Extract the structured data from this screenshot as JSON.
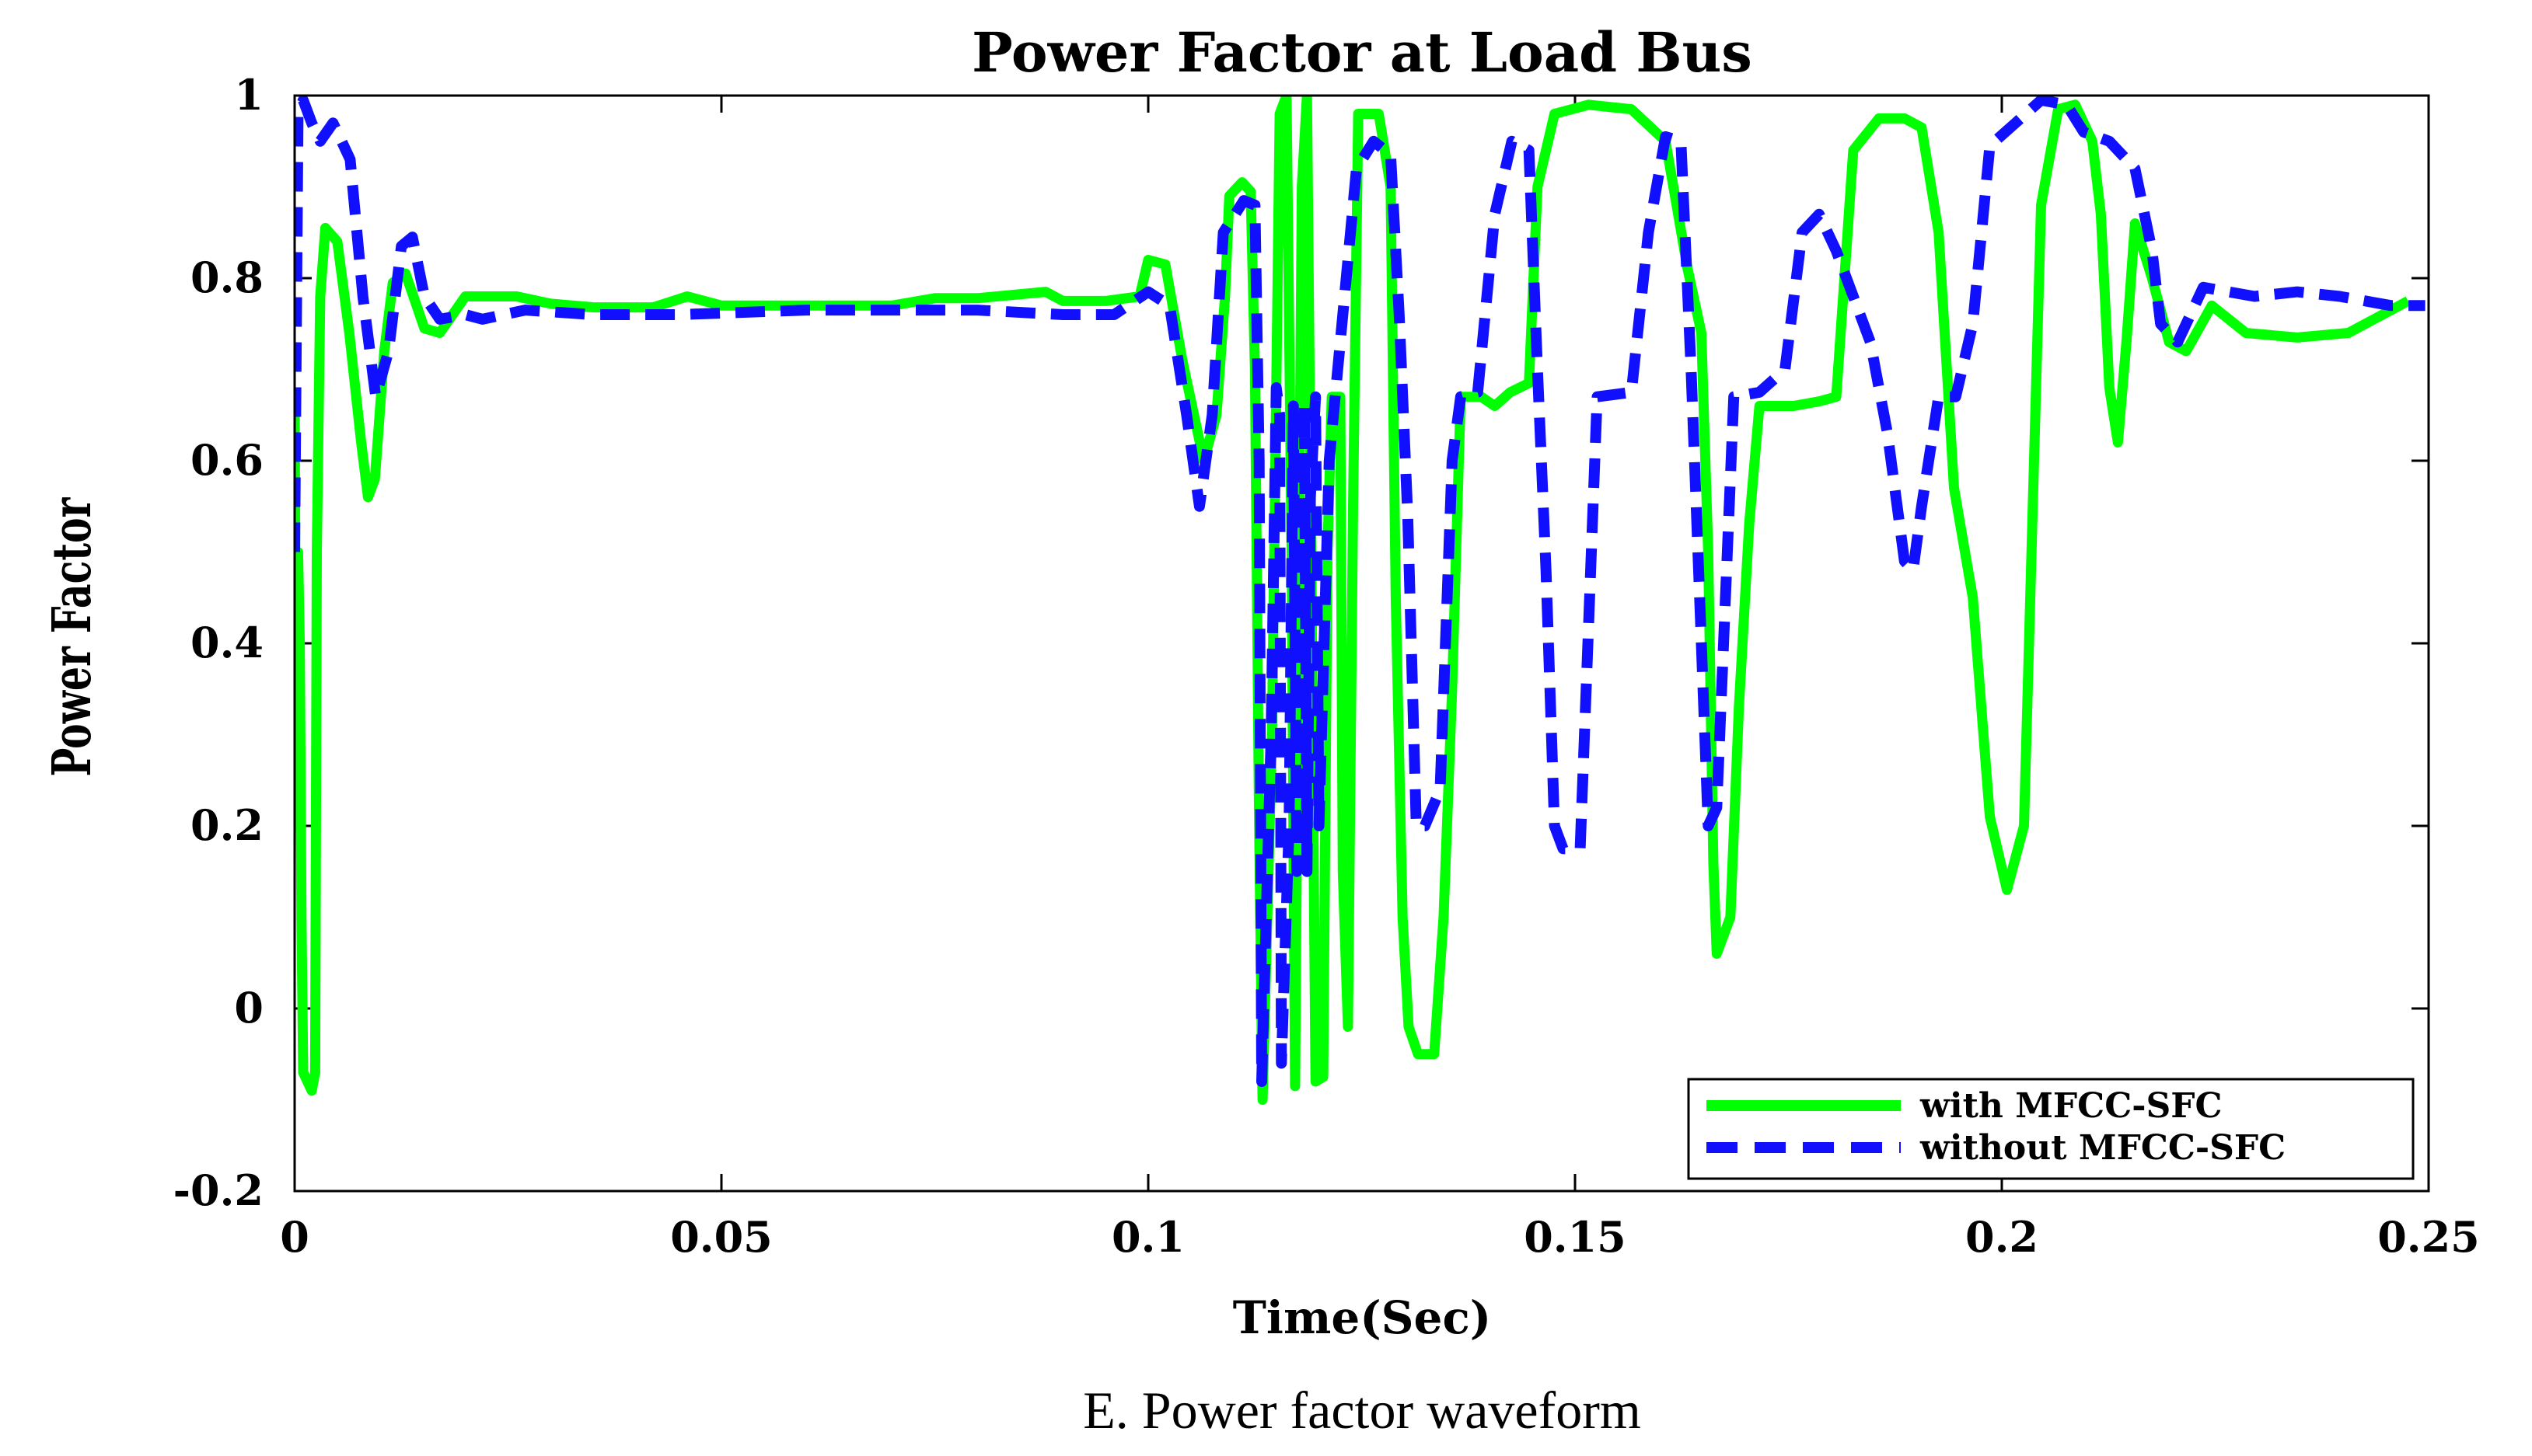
{
  "chart_data": {
    "type": "line",
    "title": "Power Factor at Load Bus",
    "xlabel": "Time(Sec)",
    "ylabel": "Power Factor",
    "xlim": [
      0,
      0.25
    ],
    "ylim": [
      -0.2,
      1
    ],
    "xticks": [
      0,
      0.05,
      0.1,
      0.15,
      0.2,
      0.25
    ],
    "xtick_labels": [
      "0",
      "0.05",
      "0.1",
      "0.15",
      "0.2",
      "0.25"
    ],
    "yticks": [
      -0.2,
      0,
      0.2,
      0.4,
      0.6,
      0.8,
      1
    ],
    "ytick_labels": [
      "-0.2",
      "0",
      "0.2",
      "0.4",
      "0.6",
      "0.8",
      "1"
    ],
    "legend_position": "bottom-right",
    "grid": false,
    "series": [
      {
        "name": "with MFCC-SFC",
        "color": "#00ff00",
        "style": "solid",
        "points": [
          [
            0,
            0.66
          ],
          [
            0.0002,
            0.2
          ],
          [
            0.0004,
            0.5
          ],
          [
            0.0006,
            0.4
          ],
          [
            0.0008,
            0.1
          ],
          [
            0.001,
            -0.07
          ],
          [
            0.002,
            -0.09
          ],
          [
            0.0024,
            -0.07
          ],
          [
            0.0026,
            0.5
          ],
          [
            0.003,
            0.78
          ],
          [
            0.0036,
            0.855
          ],
          [
            0.005,
            0.84
          ],
          [
            0.0064,
            0.74
          ],
          [
            0.0078,
            0.62
          ],
          [
            0.0086,
            0.56
          ],
          [
            0.0094,
            0.58
          ],
          [
            0.0105,
            0.72
          ],
          [
            0.0115,
            0.795
          ],
          [
            0.013,
            0.805
          ],
          [
            0.0152,
            0.745
          ],
          [
            0.017,
            0.74
          ],
          [
            0.02,
            0.78
          ],
          [
            0.026,
            0.78
          ],
          [
            0.03,
            0.772
          ],
          [
            0.035,
            0.768
          ],
          [
            0.042,
            0.768
          ],
          [
            0.046,
            0.78
          ],
          [
            0.05,
            0.77
          ],
          [
            0.06,
            0.77
          ],
          [
            0.07,
            0.77
          ],
          [
            0.075,
            0.778
          ],
          [
            0.08,
            0.778
          ],
          [
            0.088,
            0.785
          ],
          [
            0.09,
            0.775
          ],
          [
            0.095,
            0.775
          ],
          [
            0.099,
            0.78
          ],
          [
            0.1,
            0.82
          ],
          [
            0.102,
            0.815
          ],
          [
            0.104,
            0.71
          ],
          [
            0.1065,
            0.6
          ],
          [
            0.108,
            0.65
          ],
          [
            0.109,
            0.78
          ],
          [
            0.1095,
            0.89
          ],
          [
            0.111,
            0.905
          ],
          [
            0.112,
            0.895
          ],
          [
            0.1125,
            0.7
          ],
          [
            0.113,
            0.2
          ],
          [
            0.1134,
            -0.1
          ],
          [
            0.1145,
            0.3
          ],
          [
            0.1154,
            0.98
          ],
          [
            0.1162,
            1.0
          ],
          [
            0.1168,
            0.5
          ],
          [
            0.1172,
            -0.085
          ],
          [
            0.118,
            0.9
          ],
          [
            0.1186,
            1.0
          ],
          [
            0.119,
            0.6
          ],
          [
            0.1196,
            -0.08
          ],
          [
            0.1205,
            -0.075
          ],
          [
            0.121,
            0.5
          ],
          [
            0.1215,
            0.67
          ],
          [
            0.1225,
            0.67
          ],
          [
            0.1228,
            0.15
          ],
          [
            0.1234,
            -0.02
          ],
          [
            0.124,
            0.55
          ],
          [
            0.1246,
            0.98
          ],
          [
            0.127,
            0.98
          ],
          [
            0.1284,
            0.9
          ],
          [
            0.129,
            0.45
          ],
          [
            0.1298,
            0.1
          ],
          [
            0.1305,
            -0.02
          ],
          [
            0.1316,
            -0.05
          ],
          [
            0.1335,
            -0.05
          ],
          [
            0.1346,
            0.1
          ],
          [
            0.1356,
            0.35
          ],
          [
            0.1366,
            0.67
          ],
          [
            0.139,
            0.67
          ],
          [
            0.1406,
            0.66
          ],
          [
            0.1424,
            0.675
          ],
          [
            0.1446,
            0.685
          ],
          [
            0.1456,
            0.9
          ],
          [
            0.1476,
            0.98
          ],
          [
            0.1516,
            0.99
          ],
          [
            0.1566,
            0.985
          ],
          [
            0.1606,
            0.95
          ],
          [
            0.1632,
            0.81
          ],
          [
            0.1648,
            0.74
          ],
          [
            0.1656,
            0.5
          ],
          [
            0.1662,
            0.16
          ],
          [
            0.1666,
            0.06
          ],
          [
            0.1682,
            0.1
          ],
          [
            0.1692,
            0.33
          ],
          [
            0.1704,
            0.53
          ],
          [
            0.1716,
            0.66
          ],
          [
            0.1756,
            0.66
          ],
          [
            0.1786,
            0.665
          ],
          [
            0.1806,
            0.67
          ],
          [
            0.1826,
            0.94
          ],
          [
            0.1856,
            0.975
          ],
          [
            0.1886,
            0.975
          ],
          [
            0.1906,
            0.965
          ],
          [
            0.1926,
            0.85
          ],
          [
            0.1944,
            0.57
          ],
          [
            0.1966,
            0.45
          ],
          [
            0.1986,
            0.21
          ],
          [
            0.2006,
            0.13
          ],
          [
            0.2026,
            0.2
          ],
          [
            0.2046,
            0.88
          ],
          [
            0.2066,
            0.985
          ],
          [
            0.2086,
            0.99
          ],
          [
            0.2106,
            0.95
          ],
          [
            0.2116,
            0.87
          ],
          [
            0.2126,
            0.68
          ],
          [
            0.2136,
            0.62
          ],
          [
            0.2146,
            0.73
          ],
          [
            0.2156,
            0.86
          ],
          [
            0.2176,
            0.8
          ],
          [
            0.2196,
            0.73
          ],
          [
            0.2216,
            0.72
          ],
          [
            0.2246,
            0.77
          ],
          [
            0.2286,
            0.74
          ],
          [
            0.2346,
            0.735
          ],
          [
            0.2406,
            0.74
          ],
          [
            0.2446,
            0.76
          ],
          [
            0.2476,
            0.775
          ]
        ]
      },
      {
        "name": "without MFCC-SFC",
        "color": "#1010ff",
        "style": "dashed",
        "points": [
          [
            0,
            0.5
          ],
          [
            0.0004,
            0.98
          ],
          [
            0.001,
            0.995
          ],
          [
            0.002,
            0.97
          ],
          [
            0.003,
            0.95
          ],
          [
            0.0045,
            0.97
          ],
          [
            0.0065,
            0.93
          ],
          [
            0.008,
            0.78
          ],
          [
            0.0095,
            0.67
          ],
          [
            0.011,
            0.72
          ],
          [
            0.0125,
            0.835
          ],
          [
            0.0138,
            0.845
          ],
          [
            0.0152,
            0.78
          ],
          [
            0.017,
            0.755
          ],
          [
            0.02,
            0.76
          ],
          [
            0.022,
            0.755
          ],
          [
            0.027,
            0.765
          ],
          [
            0.035,
            0.76
          ],
          [
            0.045,
            0.76
          ],
          [
            0.06,
            0.765
          ],
          [
            0.07,
            0.765
          ],
          [
            0.08,
            0.765
          ],
          [
            0.09,
            0.76
          ],
          [
            0.096,
            0.76
          ],
          [
            0.1,
            0.785
          ],
          [
            0.1025,
            0.77
          ],
          [
            0.1045,
            0.65
          ],
          [
            0.106,
            0.55
          ],
          [
            0.1075,
            0.65
          ],
          [
            0.1088,
            0.85
          ],
          [
            0.1112,
            0.885
          ],
          [
            0.1125,
            0.88
          ],
          [
            0.113,
            0.6
          ],
          [
            0.1133,
            -0.08
          ],
          [
            0.1144,
            0.3
          ],
          [
            0.115,
            0.68
          ],
          [
            0.1154,
            0.65
          ],
          [
            0.1156,
            -0.06
          ],
          [
            0.1165,
            0.2
          ],
          [
            0.117,
            0.66
          ],
          [
            0.1174,
            0.15
          ],
          [
            0.1178,
            0.3
          ],
          [
            0.1183,
            0.66
          ],
          [
            0.1186,
            0.15
          ],
          [
            0.119,
            0.56
          ],
          [
            0.1196,
            0.67
          ],
          [
            0.12,
            0.2
          ],
          [
            0.1212,
            0.6
          ],
          [
            0.1228,
            0.76
          ],
          [
            0.1234,
            0.82
          ],
          [
            0.1244,
            0.92
          ],
          [
            0.1264,
            0.95
          ],
          [
            0.1284,
            0.935
          ],
          [
            0.1294,
            0.76
          ],
          [
            0.1304,
            0.54
          ],
          [
            0.1314,
            0.2
          ],
          [
            0.1324,
            0.2
          ],
          [
            0.1342,
            0.24
          ],
          [
            0.1356,
            0.6
          ],
          [
            0.1366,
            0.67
          ],
          [
            0.1386,
            0.675
          ],
          [
            0.1406,
            0.87
          ],
          [
            0.1426,
            0.95
          ],
          [
            0.1446,
            0.94
          ],
          [
            0.1456,
            0.7
          ],
          [
            0.1466,
            0.48
          ],
          [
            0.1476,
            0.2
          ],
          [
            0.1486,
            0.175
          ],
          [
            0.1506,
            0.175
          ],
          [
            0.1526,
            0.67
          ],
          [
            0.1566,
            0.675
          ],
          [
            0.1586,
            0.85
          ],
          [
            0.1606,
            0.955
          ],
          [
            0.1624,
            0.95
          ],
          [
            0.1636,
            0.7
          ],
          [
            0.1648,
            0.4
          ],
          [
            0.1656,
            0.2
          ],
          [
            0.1666,
            0.22
          ],
          [
            0.1686,
            0.67
          ],
          [
            0.1716,
            0.675
          ],
          [
            0.1746,
            0.7
          ],
          [
            0.1766,
            0.85
          ],
          [
            0.1786,
            0.87
          ],
          [
            0.1806,
            0.83
          ],
          [
            0.1826,
            0.78
          ],
          [
            0.1846,
            0.73
          ],
          [
            0.1866,
            0.63
          ],
          [
            0.1886,
            0.49
          ],
          [
            0.1896,
            0.48
          ],
          [
            0.1906,
            0.55
          ],
          [
            0.1926,
            0.67
          ],
          [
            0.1946,
            0.67
          ],
          [
            0.1966,
            0.75
          ],
          [
            0.1986,
            0.945
          ],
          [
            0.2016,
            0.97
          ],
          [
            0.2046,
            0.995
          ],
          [
            0.2076,
            0.99
          ],
          [
            0.2096,
            0.96
          ],
          [
            0.2126,
            0.95
          ],
          [
            0.2156,
            0.92
          ],
          [
            0.2176,
            0.83
          ],
          [
            0.2186,
            0.75
          ],
          [
            0.2206,
            0.73
          ],
          [
            0.2236,
            0.79
          ],
          [
            0.2296,
            0.78
          ],
          [
            0.2346,
            0.785
          ],
          [
            0.2396,
            0.78
          ],
          [
            0.2456,
            0.77
          ],
          [
            0.2496,
            0.77
          ]
        ]
      }
    ]
  },
  "caption": "E. Power factor waveform"
}
